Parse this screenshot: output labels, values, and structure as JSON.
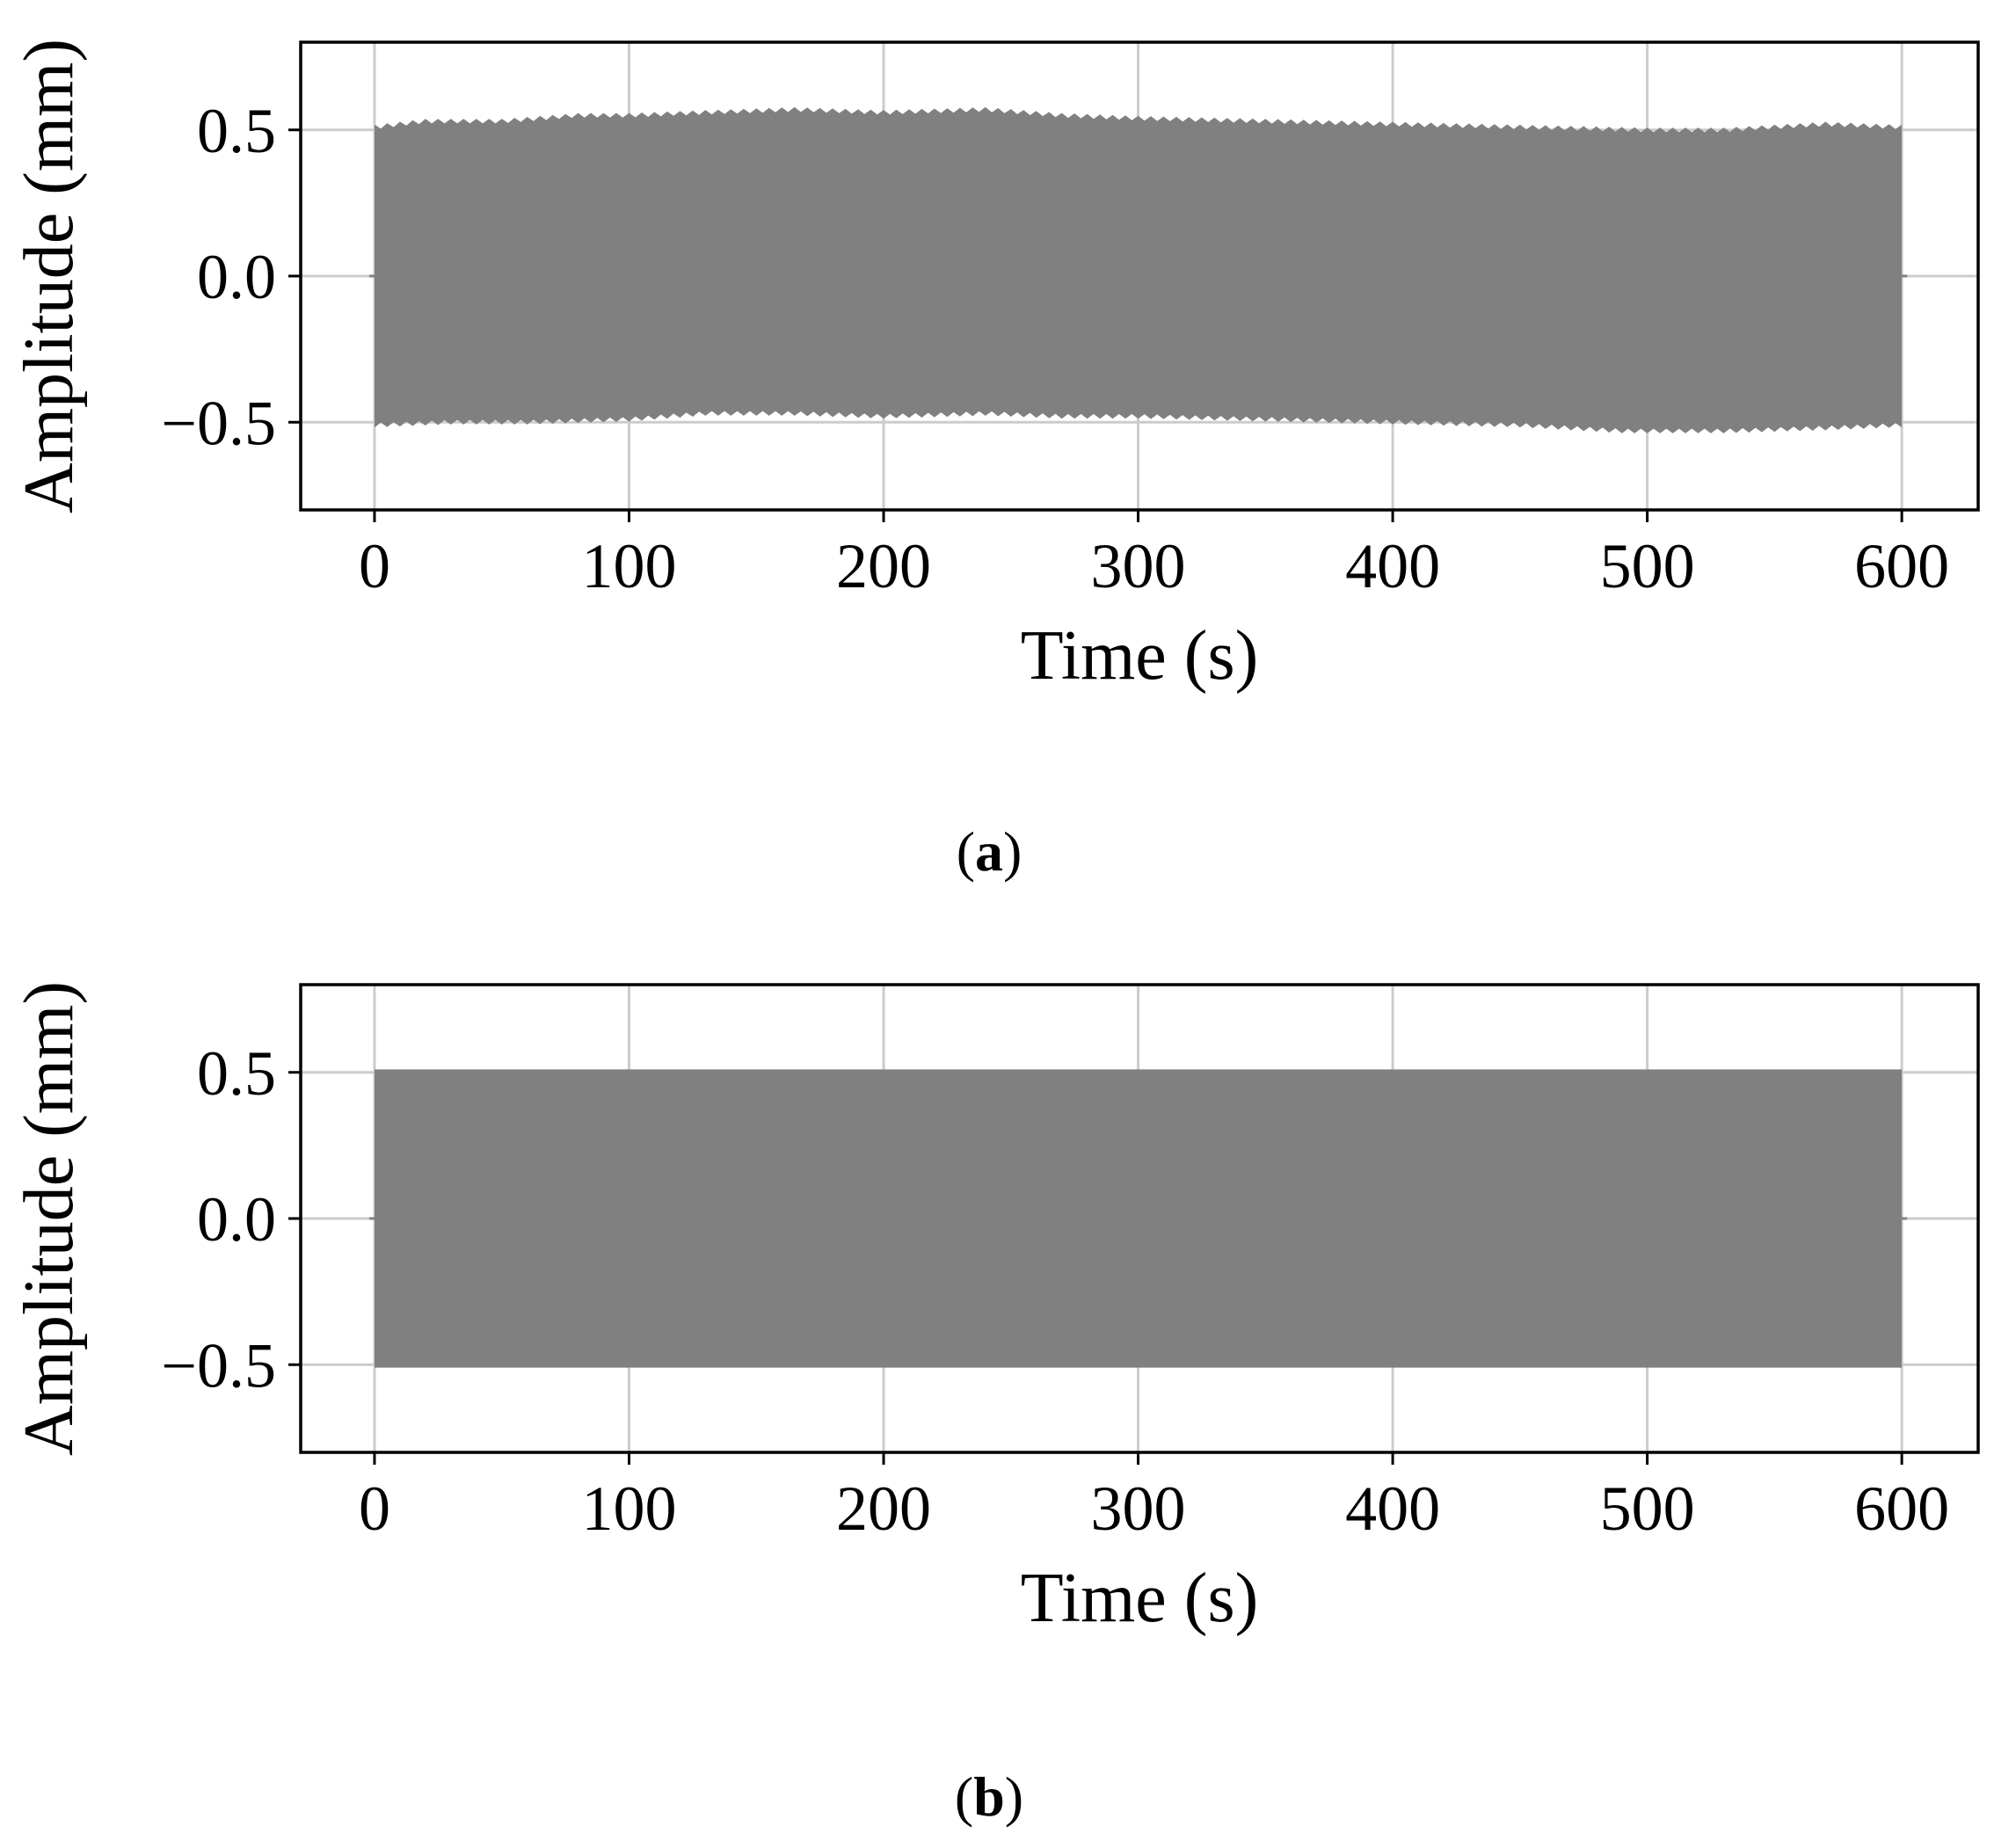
{
  "chart_data": [
    {
      "type": "line",
      "caption_letter": "a",
      "xlabel": "Time (s)",
      "ylabel": "Amplitude (mm)",
      "xlim": [
        -29,
        630
      ],
      "ylim": [
        -0.8,
        0.8
      ],
      "xticks": [
        0,
        100,
        200,
        300,
        400,
        500,
        600
      ],
      "xtick_labels": [
        "0",
        "100",
        "200",
        "300",
        "400",
        "500",
        "600"
      ],
      "yticks": [
        -0.5,
        0.0,
        0.5
      ],
      "ytick_labels": [
        "−0.5",
        "0.0",
        "0.5"
      ],
      "grid": true,
      "series_color": "#808080",
      "signal": {
        "t_start": 0,
        "t_end": 600,
        "upper_envelope": [
          [
            0,
            0.51
          ],
          [
            20,
            0.53
          ],
          [
            50,
            0.53
          ],
          [
            80,
            0.55
          ],
          [
            100,
            0.55
          ],
          [
            130,
            0.56
          ],
          [
            165,
            0.57
          ],
          [
            200,
            0.56
          ],
          [
            240,
            0.57
          ],
          [
            270,
            0.55
          ],
          [
            300,
            0.54
          ],
          [
            350,
            0.53
          ],
          [
            400,
            0.52
          ],
          [
            450,
            0.51
          ],
          [
            500,
            0.5
          ],
          [
            530,
            0.5
          ],
          [
            570,
            0.52
          ],
          [
            600,
            0.51
          ]
        ],
        "lower_envelope": [
          [
            0,
            -0.51
          ],
          [
            30,
            -0.5
          ],
          [
            60,
            -0.5
          ],
          [
            100,
            -0.49
          ],
          [
            130,
            -0.47
          ],
          [
            165,
            -0.47
          ],
          [
            200,
            -0.48
          ],
          [
            240,
            -0.47
          ],
          [
            270,
            -0.48
          ],
          [
            300,
            -0.48
          ],
          [
            350,
            -0.49
          ],
          [
            400,
            -0.5
          ],
          [
            450,
            -0.51
          ],
          [
            490,
            -0.53
          ],
          [
            530,
            -0.53
          ],
          [
            570,
            -0.52
          ],
          [
            600,
            -0.51
          ]
        ]
      }
    },
    {
      "type": "line",
      "caption_letter": "b",
      "xlabel": "Time (s)",
      "ylabel": "Amplitude (mm)",
      "xlim": [
        -29,
        630
      ],
      "ylim": [
        -0.8,
        0.8
      ],
      "xticks": [
        0,
        100,
        200,
        300,
        400,
        500,
        600
      ],
      "xtick_labels": [
        "0",
        "100",
        "200",
        "300",
        "400",
        "500",
        "600"
      ],
      "yticks": [
        -0.5,
        0.0,
        0.5
      ],
      "ytick_labels": [
        "−0.5",
        "0.0",
        "0.5"
      ],
      "grid": true,
      "series_color": "#808080",
      "signal": {
        "t_start": 0,
        "t_end": 600,
        "upper_envelope": [
          [
            0,
            0.51
          ],
          [
            600,
            0.51
          ]
        ],
        "lower_envelope": [
          [
            0,
            -0.51
          ],
          [
            600,
            -0.51
          ]
        ]
      }
    }
  ]
}
